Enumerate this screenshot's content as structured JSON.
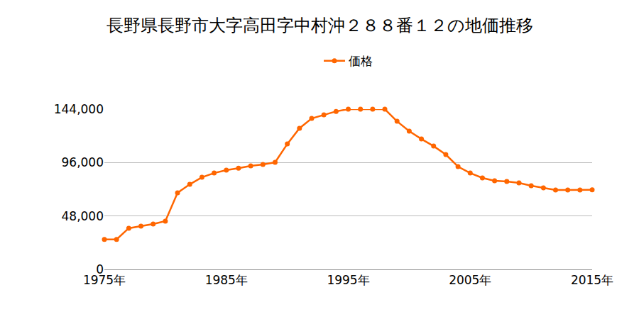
{
  "chart_data": {
    "type": "line",
    "title": "長野県長野市大字高田字中村沖２８８番１２の地価推移",
    "x": [
      1975,
      1976,
      1977,
      1978,
      1979,
      1980,
      1981,
      1982,
      1983,
      1984,
      1985,
      1986,
      1987,
      1988,
      1989,
      1990,
      1991,
      1992,
      1993,
      1994,
      1995,
      1996,
      1997,
      1998,
      1999,
      2000,
      2001,
      2002,
      2003,
      2004,
      2005,
      2006,
      2007,
      2008,
      2009,
      2010,
      2011,
      2012,
      2013,
      2014,
      2015
    ],
    "series": [
      {
        "name": "価格",
        "color": "#ff6600",
        "marker": "circle",
        "values": [
          27000,
          27000,
          37000,
          38800,
          40800,
          43300,
          68800,
          76400,
          82800,
          86600,
          89200,
          91000,
          93000,
          94300,
          96200,
          112700,
          126800,
          135700,
          138900,
          142000,
          144000,
          144000,
          144000,
          144000,
          133100,
          124200,
          117200,
          110800,
          103200,
          92400,
          86600,
          82200,
          79600,
          79000,
          77700,
          75200,
          73300,
          71300,
          71300,
          71300,
          71500
        ]
      }
    ],
    "xlim": [
      1975,
      2015
    ],
    "xticks": [
      {
        "value": 1975,
        "label": "1975年"
      },
      {
        "value": 1985,
        "label": "1985年"
      },
      {
        "value": 1995,
        "label": "1995年"
      },
      {
        "value": 2005,
        "label": "2005年"
      },
      {
        "value": 2015,
        "label": "2015年"
      }
    ],
    "ylim": [
      0,
      144000
    ],
    "yticks": [
      0,
      {
        "value": 48000,
        "label": "48,000"
      },
      {
        "value": 96000,
        "label": "96,000"
      },
      {
        "value": 144000,
        "label": "144,000"
      }
    ],
    "grid": true,
    "legend": "top"
  }
}
